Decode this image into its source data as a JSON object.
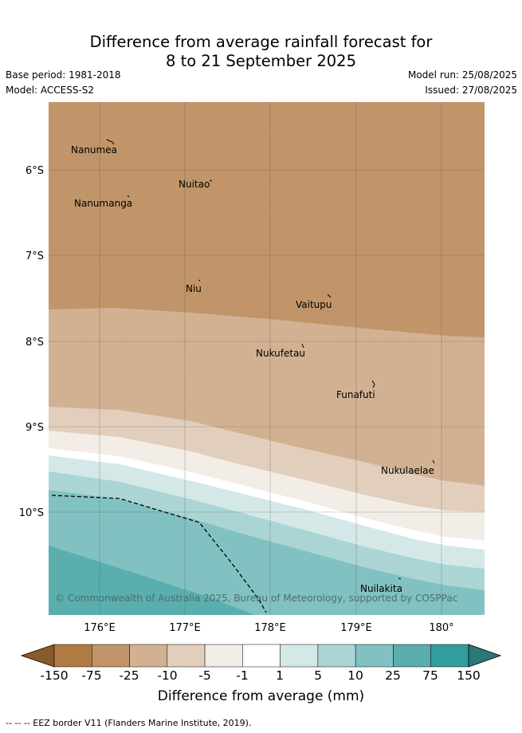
{
  "title": {
    "line1": "Difference from average rainfall forecast for",
    "line2": "8 to 21 September 2025"
  },
  "meta": {
    "base_period": "Base period: 1981-2018",
    "model": "Model: ACCESS-S2",
    "model_run": "Model run: 25/08/2025",
    "issued": "Issued: 27/08/2025"
  },
  "map": {
    "lon_ticks": [
      "176°E",
      "177°E",
      "178°E",
      "179°E",
      "180°"
    ],
    "lat_ticks": [
      "6°S",
      "7°S",
      "8°S",
      "9°S",
      "10°S"
    ],
    "copyright": "© Commonwealth of Australia 2025, Bureau of Meteorology, supported by COSPPac",
    "places": [
      "Nanumea",
      "Nuitao",
      "Nanumanga",
      "Niu",
      "Vaitupu",
      "Nukufetau",
      "Funafuti",
      "Nukulaelae",
      "Nuilakita"
    ]
  },
  "colorbar": {
    "labels": [
      "-150",
      "-75",
      "-25",
      "-10",
      "-5",
      "-1",
      "1",
      "5",
      "10",
      "25",
      "75",
      "150"
    ],
    "colors": [
      "#8a5a2b",
      "#b07a43",
      "#c19569",
      "#d2b193",
      "#e2cebd",
      "#f2ede7",
      "#ffffff",
      "#d5e8e8",
      "#abd5d5",
      "#82c1c1",
      "#5aaeae",
      "#339c9c",
      "#2a7878"
    ],
    "title": "Difference from average (mm)"
  },
  "footer": "--  --  -- EEZ border V11 (Flanders Marine Institute, 2019)."
}
